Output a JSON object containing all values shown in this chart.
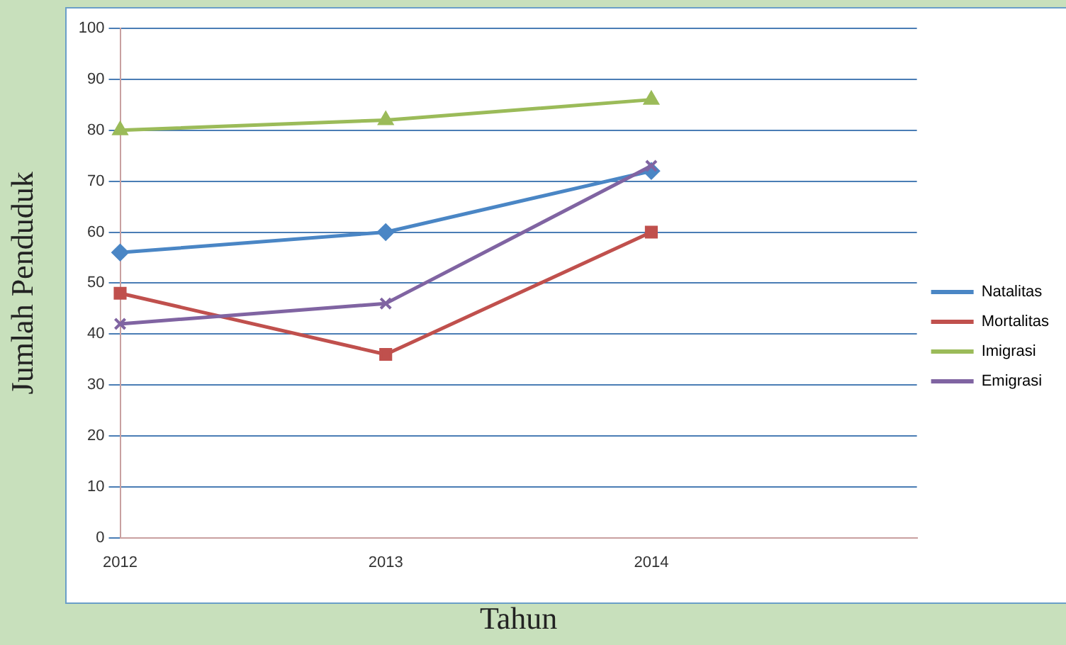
{
  "chart_data": {
    "type": "line",
    "xlabel": "Tahun",
    "ylabel": "Jumlah Penduduk",
    "categories": [
      "2012",
      "2013",
      "2014",
      null
    ],
    "series": [
      {
        "name": "Natalitas",
        "color": "#4a86c5",
        "values": [
          56,
          60,
          72,
          null
        ],
        "marker": "diamond"
      },
      {
        "name": "Mortalitas",
        "color": "#c0504d",
        "values": [
          48,
          36,
          60,
          null
        ],
        "marker": "square"
      },
      {
        "name": "Imigrasi",
        "color": "#9bbb59",
        "values": [
          80,
          82,
          86,
          null
        ],
        "marker": "triangle"
      },
      {
        "name": "Emigrasi",
        "color": "#8064a2",
        "values": [
          42,
          46,
          73,
          null
        ],
        "marker": "cross"
      }
    ],
    "ylim": [
      0,
      100
    ],
    "yticks": [
      0,
      10,
      20,
      30,
      40,
      50,
      60,
      70,
      80,
      90,
      100
    ],
    "grid": "y",
    "legend": "right",
    "line_style": "solid"
  }
}
